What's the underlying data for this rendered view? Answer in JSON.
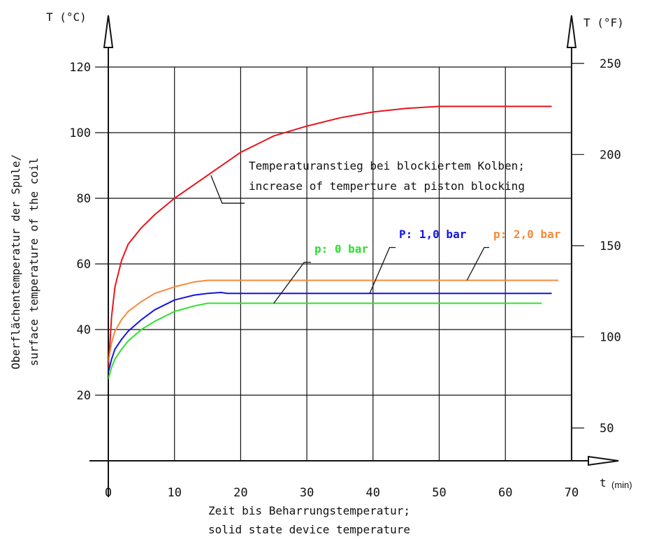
{
  "chart_data": {
    "type": "line",
    "left_axis_label": "T (°C)",
    "right_axis_label": "T (°F)",
    "x_axis_symbol": "t",
    "x_axis_unit": "(min)",
    "ylabel_line1": "Oberflächentemperatur der Spule/",
    "ylabel_line2": "surface temperature of the coil",
    "xlabel_line1": "Zeit bis Beharrungstemperatur;",
    "xlabel_line2": "solid state device temperature",
    "xlim": [
      0,
      70
    ],
    "ylim": [
      0,
      120
    ],
    "grid": true,
    "x_ticks": [
      "0",
      "10",
      "20",
      "30",
      "40",
      "50",
      "60",
      "70"
    ],
    "y_ticks_left": [
      "20",
      "40",
      "60",
      "80",
      "100",
      "120"
    ],
    "y_ticks_right": [
      "50",
      "100",
      "150",
      "200",
      "250"
    ],
    "series": [
      {
        "name": "Temperaturanstieg bei blockiertem Kolben; increase of temperture at piston blocking",
        "color": "#e8141c",
        "x": [
          0,
          0.5,
          1,
          2,
          3,
          5,
          7,
          10,
          15,
          20,
          25,
          30,
          35,
          40,
          45,
          50,
          55,
          60,
          67
        ],
        "y": [
          28,
          44,
          53,
          61,
          66,
          71,
          75,
          80,
          87,
          94,
          99,
          102,
          104.5,
          106.3,
          107.4,
          108,
          108,
          108,
          108
        ]
      },
      {
        "name": "p: 2,0 bar",
        "color": "#f58a3a",
        "x": [
          0,
          0.5,
          1,
          2,
          3,
          5,
          7,
          10,
          13,
          15,
          17,
          20,
          30,
          40,
          50,
          60,
          68
        ],
        "y": [
          30,
          36,
          39.5,
          43,
          45.5,
          48.5,
          51,
          53,
          54.5,
          55,
          55,
          55,
          55,
          55,
          55,
          55,
          55
        ]
      },
      {
        "name": "P: 1,0 bar",
        "color": "#1414e6",
        "x": [
          0,
          0.5,
          1,
          2,
          3,
          5,
          7,
          10,
          13,
          15,
          17,
          18,
          20,
          30,
          40,
          50,
          60,
          67
        ],
        "y": [
          27,
          31,
          34,
          37,
          39.5,
          43,
          46,
          49,
          50.5,
          51,
          51.3,
          51,
          51,
          51,
          51,
          51,
          51,
          51
        ]
      },
      {
        "name": "p: 0 bar",
        "color": "#2ee02e",
        "x": [
          0,
          0.5,
          1,
          2,
          3,
          5,
          7,
          10,
          13,
          15,
          17,
          20,
          30,
          40,
          50,
          60,
          65.5
        ],
        "y": [
          25,
          28.5,
          31,
          34,
          36.5,
          40,
          42.5,
          45.5,
          47.2,
          48,
          48,
          48,
          48,
          48,
          48,
          48,
          48
        ]
      }
    ],
    "annotations": {
      "red_line1": "Temperaturanstieg bei blockiertem Kolben;",
      "red_line2": "increase of temperture at piston blocking",
      "green": "p: 0 bar",
      "blue": "P: 1,0 bar",
      "orange": "p: 2,0 bar"
    }
  }
}
